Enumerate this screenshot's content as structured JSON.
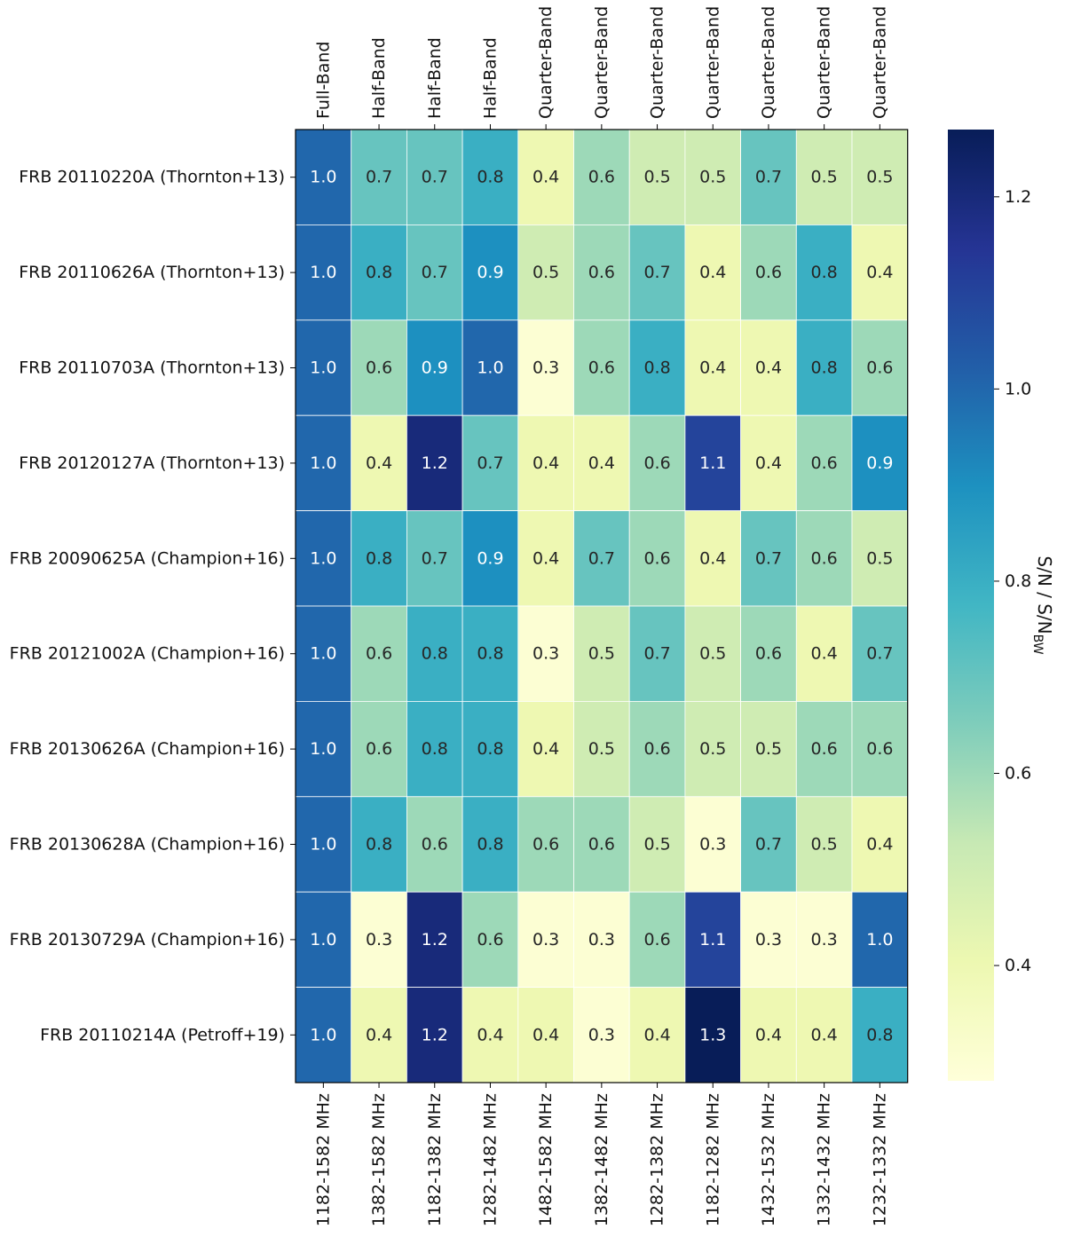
{
  "chart_data": {
    "type": "heatmap",
    "title": "",
    "rows": [
      "FRB 20110220A (Thornton+13)",
      "FRB 20110626A (Thornton+13)",
      "FRB 20110703A (Thornton+13)",
      "FRB 20120127A (Thornton+13)",
      "FRB 20090625A (Champion+16)",
      "FRB 20121002A (Champion+16)",
      "FRB 20130626A (Champion+16)",
      "FRB 20130628A (Champion+16)",
      "FRB 20130729A (Champion+16)",
      "FRB 20110214A (Petroff+19)"
    ],
    "columns_top": [
      "Full-Band",
      "Half-Band",
      "Half-Band",
      "Half-Band",
      "Quarter-Band",
      "Quarter-Band",
      "Quarter-Band",
      "Quarter-Band",
      "Quarter-Band",
      "Quarter-Band",
      "Quarter-Band"
    ],
    "columns_bottom": [
      "1182-1582 MHz",
      "1382-1582 MHz",
      "1182-1382 MHz",
      "1282-1482 MHz",
      "1482-1582 MHz",
      "1382-1482 MHz",
      "1282-1382 MHz",
      "1182-1282 MHz",
      "1432-1532 MHz",
      "1332-1432 MHz",
      "1232-1332 MHz"
    ],
    "values": [
      [
        1.0,
        0.7,
        0.7,
        0.8,
        0.4,
        0.6,
        0.5,
        0.5,
        0.7,
        0.5,
        0.5
      ],
      [
        1.0,
        0.8,
        0.7,
        0.9,
        0.5,
        0.6,
        0.7,
        0.4,
        0.6,
        0.8,
        0.4
      ],
      [
        1.0,
        0.6,
        0.9,
        1.0,
        0.3,
        0.6,
        0.8,
        0.4,
        0.4,
        0.8,
        0.6
      ],
      [
        1.0,
        0.4,
        1.2,
        0.7,
        0.4,
        0.4,
        0.6,
        1.1,
        0.4,
        0.6,
        0.9
      ],
      [
        1.0,
        0.8,
        0.7,
        0.9,
        0.4,
        0.7,
        0.6,
        0.4,
        0.7,
        0.6,
        0.5
      ],
      [
        1.0,
        0.6,
        0.8,
        0.8,
        0.3,
        0.5,
        0.7,
        0.5,
        0.6,
        0.4,
        0.7
      ],
      [
        1.0,
        0.6,
        0.8,
        0.8,
        0.4,
        0.5,
        0.6,
        0.5,
        0.5,
        0.6,
        0.6
      ],
      [
        1.0,
        0.8,
        0.6,
        0.8,
        0.6,
        0.6,
        0.5,
        0.3,
        0.7,
        0.5,
        0.4
      ],
      [
        1.0,
        0.3,
        1.2,
        0.6,
        0.3,
        0.3,
        0.6,
        1.1,
        0.3,
        0.3,
        1.0
      ],
      [
        1.0,
        0.4,
        1.2,
        0.4,
        0.4,
        0.3,
        0.4,
        1.3,
        0.4,
        0.4,
        0.8
      ]
    ],
    "colorbar": {
      "label": "S/N / S/N",
      "label_subscript": "BW",
      "min": 0.28,
      "max": 1.27,
      "ticks": [
        0.4,
        0.6,
        0.8,
        1.0,
        1.2
      ],
      "tick_labels": [
        "0.4",
        "0.6",
        "0.8",
        "1.0",
        "1.2"
      ],
      "colormap": "YlGnBu",
      "colormap_stops": [
        "#ffffd9",
        "#edf8b1",
        "#c7e9b4",
        "#7fcdbb",
        "#41b6c4",
        "#1d91c0",
        "#225ea8",
        "#253494",
        "#081d58"
      ]
    },
    "grid": true
  }
}
